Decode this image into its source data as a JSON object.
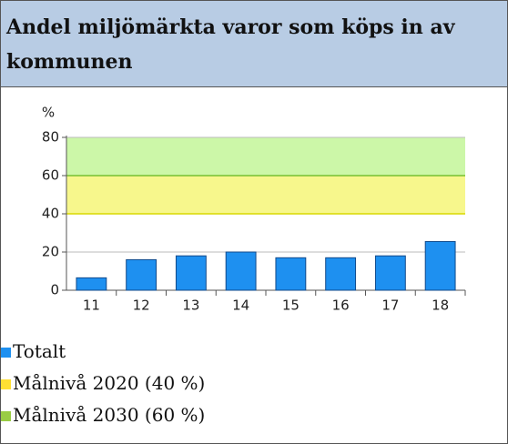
{
  "chart_data": {
    "type": "bar",
    "title": "Andel miljömärkta varor som köps in av kommunen",
    "y_label": "%",
    "categories": [
      "11",
      "12",
      "13",
      "14",
      "15",
      "16",
      "17",
      "18"
    ],
    "series": [
      {
        "name": "Totalt",
        "color": "#1e90f0",
        "values": [
          6.5,
          16,
          18,
          20,
          17,
          17,
          18,
          25.5
        ]
      }
    ],
    "targets": [
      {
        "name": "Målnivå 2020 (40 %)",
        "color": "#ffe033",
        "band_color": "#f7f78c",
        "line_color": "#d8d800",
        "value": 40
      },
      {
        "name": "Målnivå 2030 (60 %)",
        "color": "#99cc44",
        "band_color": "#ccf7a8",
        "line_color": "#77c033",
        "value": 60
      }
    ],
    "ylim": [
      0,
      80
    ],
    "yticks": [
      0,
      20,
      40,
      60,
      80
    ],
    "grid": true
  }
}
